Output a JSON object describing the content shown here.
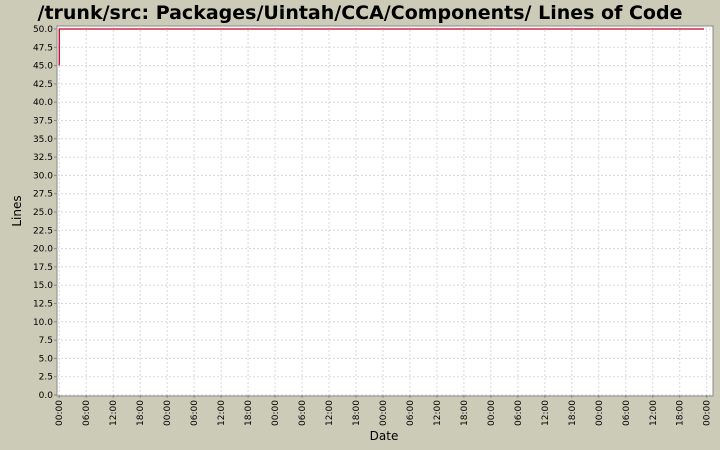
{
  "chart_data": {
    "type": "line",
    "title": "/trunk/src: Packages/Uintah/CCA/Components/ Lines of Code",
    "xlabel": "Date",
    "ylabel": "Lines",
    "ylim": [
      0,
      50
    ],
    "y_ticks": [
      "0.0",
      "2.5",
      "5.0",
      "7.5",
      "10.0",
      "12.5",
      "15.0",
      "17.5",
      "20.0",
      "22.5",
      "25.0",
      "27.5",
      "30.0",
      "32.5",
      "35.0",
      "37.5",
      "40.0",
      "42.5",
      "45.0",
      "47.5",
      "50.0"
    ],
    "x_ticks": [
      "00:00",
      "06:00",
      "12:00",
      "18:00",
      "00:00",
      "06:00",
      "12:00",
      "18:00",
      "00:00",
      "06:00",
      "12:00",
      "18:00",
      "00:00",
      "06:00",
      "12:00",
      "18:00",
      "00:00",
      "06:00",
      "12:00",
      "18:00",
      "00:00",
      "06:00",
      "12:00",
      "18:00",
      "00:00"
    ],
    "x_hours_range": [
      -0.5,
      145.4
    ],
    "grid": true,
    "series": [
      {
        "color": "#c0001f",
        "points": [
          {
            "x": 0.0,
            "y": 45
          },
          {
            "x": 0.0,
            "y": 50
          },
          {
            "x": 143.4,
            "y": 50
          }
        ]
      }
    ]
  }
}
